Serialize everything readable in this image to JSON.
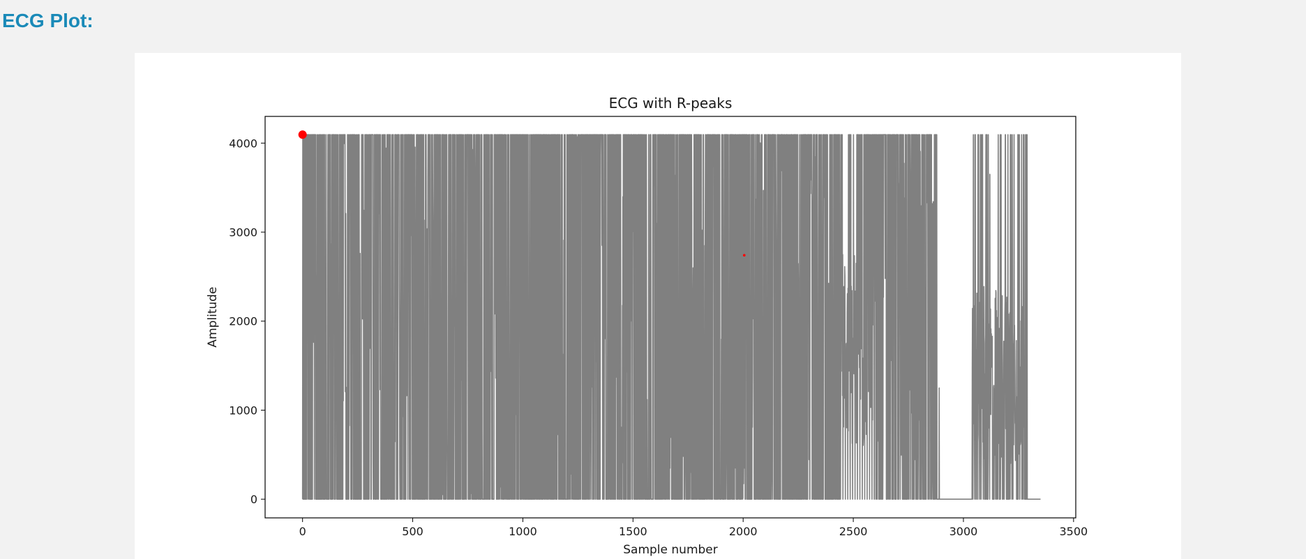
{
  "page": {
    "heading": "ECG Plot:"
  },
  "colors": {
    "heading": "#1a8ab8",
    "signal": "#808080",
    "peaks": "#ff0000",
    "background": "#f2f2f2",
    "card": "#ffffff"
  },
  "chart_data": {
    "type": "line",
    "title": "ECG with R-peaks",
    "xlabel": "Sample number",
    "ylabel": "Amplitude",
    "xlim": [
      -170,
      3510
    ],
    "ylim": [
      -210,
      4300
    ],
    "x_ticks": [
      0,
      500,
      1000,
      1500,
      2000,
      2500,
      3000,
      3500
    ],
    "y_ticks": [
      0,
      1000,
      2000,
      3000,
      4000
    ],
    "grid": false,
    "legend": "none",
    "series": [
      {
        "kind": "line",
        "color": "#808080",
        "description_points": [
          [
            0,
            4095
          ],
          [
            40,
            0
          ],
          [
            80,
            4095
          ],
          [
            110,
            500
          ],
          [
            130,
            4095
          ],
          [
            150,
            300
          ],
          [
            180,
            4095
          ],
          [
            200,
            600
          ],
          [
            230,
            4095
          ],
          [
            260,
            200
          ],
          [
            300,
            4095
          ],
          [
            340,
            800
          ],
          [
            380,
            4095
          ],
          [
            420,
            300
          ],
          [
            470,
            4095
          ],
          [
            500,
            0
          ],
          [
            550,
            4095
          ],
          [
            600,
            400
          ],
          [
            650,
            4095
          ],
          [
            700,
            300
          ],
          [
            740,
            4095
          ],
          [
            760,
            0
          ],
          [
            2440,
            4095
          ],
          [
            2440,
            0
          ],
          [
            2500,
            4095
          ],
          [
            2560,
            2500
          ],
          [
            2600,
            0
          ],
          [
            2650,
            4095
          ],
          [
            2700,
            1000
          ],
          [
            2750,
            4095
          ],
          [
            2790,
            500
          ],
          [
            2820,
            4095
          ],
          [
            2860,
            1500
          ],
          [
            2880,
            0
          ],
          [
            3040,
            0
          ],
          [
            3050,
            2300
          ],
          [
            3100,
            1000
          ],
          [
            3150,
            4095
          ],
          [
            3200,
            500
          ],
          [
            3260,
            4095
          ],
          [
            3280,
            0
          ],
          [
            3350,
            0
          ]
        ]
      },
      {
        "kind": "scatter",
        "color": "#ff0000",
        "points": [
          {
            "x": 0,
            "y": 4095,
            "size": "large"
          },
          {
            "x": 2005,
            "y": 2740,
            "size": "small"
          }
        ]
      }
    ]
  }
}
